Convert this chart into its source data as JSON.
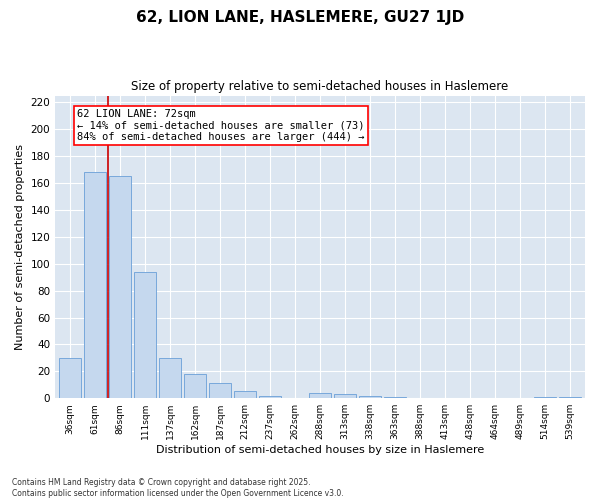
{
  "title": "62, LION LANE, HASLEMERE, GU27 1JD",
  "subtitle": "Size of property relative to semi-detached houses in Haslemere",
  "xlabel": "Distribution of semi-detached houses by size in Haslemere",
  "ylabel": "Number of semi-detached properties",
  "footer_line1": "Contains HM Land Registry data © Crown copyright and database right 2025.",
  "footer_line2": "Contains public sector information licensed under the Open Government Licence v3.0.",
  "categories": [
    "36sqm",
    "61sqm",
    "86sqm",
    "111sqm",
    "137sqm",
    "162sqm",
    "187sqm",
    "212sqm",
    "237sqm",
    "262sqm",
    "288sqm",
    "313sqm",
    "338sqm",
    "363sqm",
    "388sqm",
    "413sqm",
    "438sqm",
    "464sqm",
    "489sqm",
    "514sqm",
    "539sqm"
  ],
  "values": [
    30,
    168,
    165,
    94,
    30,
    18,
    11,
    5,
    2,
    0,
    4,
    3,
    2,
    1,
    0,
    0,
    0,
    0,
    0,
    1,
    1
  ],
  "bar_color": "#c5d8ee",
  "bar_edge_color": "#6a9fd8",
  "background_color": "#dce6f1",
  "vline_x": 1.5,
  "vline_color": "#cc0000",
  "annotation_text": "62 LION LANE: 72sqm\n← 14% of semi-detached houses are smaller (73)\n84% of semi-detached houses are larger (444) →",
  "ylim": [
    0,
    225
  ],
  "yticks": [
    0,
    20,
    40,
    60,
    80,
    100,
    120,
    140,
    160,
    180,
    200,
    220
  ],
  "title_fontsize": 11,
  "subtitle_fontsize": 8.5,
  "xlabel_fontsize": 8,
  "ylabel_fontsize": 8,
  "annot_fontsize": 7.5
}
